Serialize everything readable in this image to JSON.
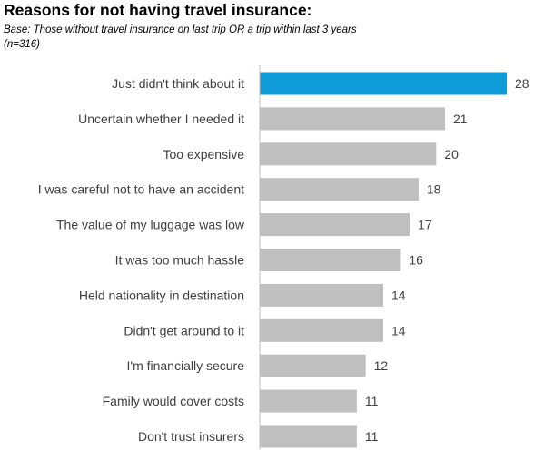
{
  "header": {
    "title": "Reasons for not having travel insurance:",
    "subtitle": "Base: Those without travel insurance on last trip OR a trip within last 3 years (n=316)"
  },
  "colors": {
    "highlight": "#0f9bd7",
    "bar": "#bfbfbf",
    "axis": "#bfbfbf",
    "label": "#404040"
  },
  "chart_data": {
    "type": "bar",
    "orientation": "horizontal",
    "categories": [
      "Just didn't think about it",
      "Uncertain whether I needed it",
      "Too expensive",
      "I was careful not to have an accident",
      "The value of my luggage was low",
      "It was too much hassle",
      "Held nationality in destination",
      "Didn't get around to it",
      "I'm financially secure",
      "Family would cover costs",
      "Don't trust insurers"
    ],
    "values": [
      28,
      21,
      20,
      18,
      17,
      16,
      14,
      14,
      12,
      11,
      11
    ],
    "highlight_index": 0,
    "xlim": [
      0,
      28
    ],
    "grid": false,
    "legend": "none",
    "data_labels": true
  }
}
